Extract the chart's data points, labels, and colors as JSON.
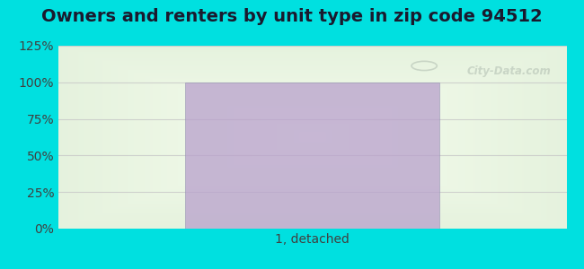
{
  "title": "Owners and renters by unit type in zip code 94512",
  "categories": [
    "1, detached"
  ],
  "values": [
    100
  ],
  "bar_color": "#b8a0cc",
  "bar_alpha": 0.75,
  "ylim": [
    0,
    125
  ],
  "yticks": [
    0,
    25,
    50,
    75,
    100,
    125
  ],
  "ytick_labels": [
    "0%",
    "25%",
    "50%",
    "75%",
    "100%",
    "125%"
  ],
  "title_fontsize": 14,
  "tick_fontsize": 10,
  "bg_outer_color": "#00e0e0",
  "watermark_text": "City-Data.com",
  "watermark_color": "#b0bdb0",
  "watermark_alpha": 0.55,
  "bar_width": 0.5,
  "bar_edge_color": "#9090b0",
  "grid_color": "#c8c8c8",
  "grid_alpha": 0.8
}
